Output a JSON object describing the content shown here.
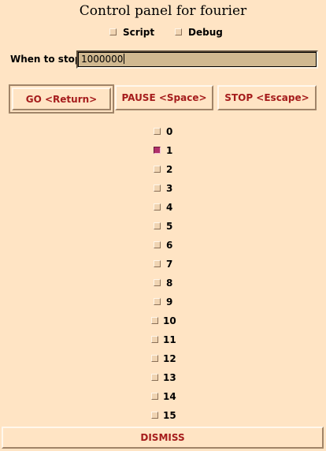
{
  "window": {
    "title": "Control panel for fourier"
  },
  "options": {
    "script_label": "Script",
    "debug_label": "Debug"
  },
  "stop": {
    "label": "When to stop:",
    "value": "1000000"
  },
  "buttons": {
    "go": "GO <Return>",
    "pause": "PAUSE <Space>",
    "stop": "STOP <Escape>",
    "dismiss": "DISMISS"
  },
  "items": [
    {
      "label": "0",
      "checked": false
    },
    {
      "label": "1",
      "checked": true
    },
    {
      "label": "2",
      "checked": false
    },
    {
      "label": "3",
      "checked": false
    },
    {
      "label": "4",
      "checked": false
    },
    {
      "label": "5",
      "checked": false
    },
    {
      "label": "6",
      "checked": false
    },
    {
      "label": "7",
      "checked": false
    },
    {
      "label": "8",
      "checked": false
    },
    {
      "label": "9",
      "checked": false
    },
    {
      "label": "10",
      "checked": false
    },
    {
      "label": "11",
      "checked": false
    },
    {
      "label": "12",
      "checked": false
    },
    {
      "label": "13",
      "checked": false
    },
    {
      "label": "14",
      "checked": false
    },
    {
      "label": "15",
      "checked": false
    }
  ],
  "colors": {
    "background": "#ffe4c4",
    "button_text": "#a51c1c",
    "checked": "#b0306a",
    "entry_background": "#d0b890"
  }
}
